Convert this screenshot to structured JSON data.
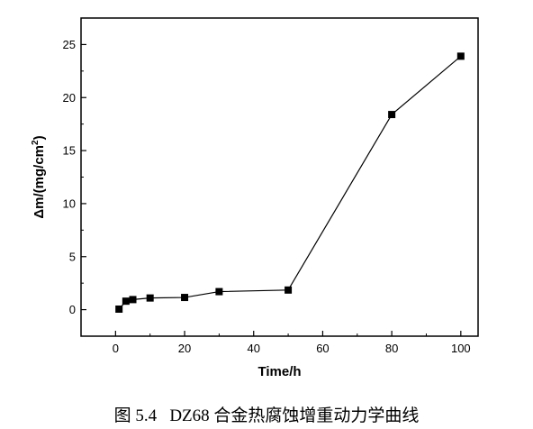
{
  "caption": "图 5.4   DZ68 合金热腐蚀增重动力学曲线",
  "chart_data": {
    "type": "line",
    "xlabel": "Time/h",
    "ylabel": "Δm/(mg/cm²)",
    "ylabel_main": "Δm/(mg/cm",
    "ylabel_sup": "2",
    "ylabel_tail": ")",
    "xlim": [
      -10,
      105
    ],
    "ylim": [
      -2.5,
      27.5
    ],
    "x_ticks": [
      0,
      20,
      40,
      60,
      80,
      100
    ],
    "y_ticks": [
      0,
      5,
      10,
      15,
      20,
      25
    ],
    "grid": false,
    "marker": "square",
    "series": [
      {
        "x": [
          1,
          3,
          5,
          10,
          20,
          30,
          50,
          80,
          100
        ],
        "y": [
          0.05,
          0.8,
          0.95,
          1.1,
          1.15,
          1.7,
          1.85,
          18.4,
          23.9
        ]
      }
    ]
  }
}
